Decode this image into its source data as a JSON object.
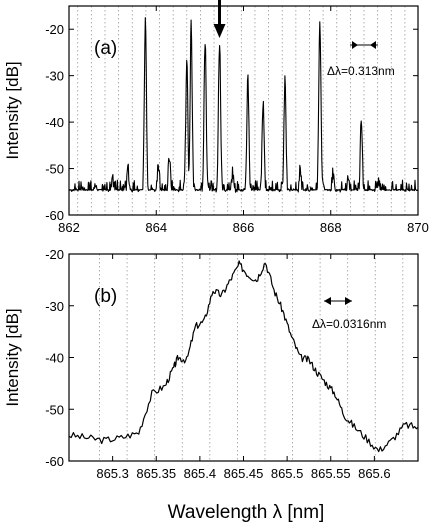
{
  "chart_data": [
    {
      "type": "line",
      "panel_label": "(a)",
      "ylabel": "Intensity [dB]",
      "xlim": [
        862,
        870
      ],
      "ylim": [
        -60,
        -15
      ],
      "xticks": [
        862,
        864,
        866,
        868,
        870
      ],
      "yticks": [
        -20,
        -30,
        -40,
        -50,
        -60
      ],
      "grid": "vertical dotted",
      "annotation": "Δλ=0.313nm",
      "arrow_marker_x": 865.45,
      "noise_floor": -56,
      "peaks": [
        {
          "x": 862.62,
          "y": -53
        },
        {
          "x": 863.0,
          "y": -52
        },
        {
          "x": 863.35,
          "y": -50
        },
        {
          "x": 863.75,
          "y": -18
        },
        {
          "x": 864.05,
          "y": -49
        },
        {
          "x": 864.3,
          "y": -47
        },
        {
          "x": 864.7,
          "y": -27
        },
        {
          "x": 864.8,
          "y": -19
        },
        {
          "x": 865.12,
          "y": -22
        },
        {
          "x": 865.45,
          "y": -22
        },
        {
          "x": 865.75,
          "y": -51
        },
        {
          "x": 866.1,
          "y": -31
        },
        {
          "x": 866.45,
          "y": -36
        },
        {
          "x": 866.95,
          "y": -31
        },
        {
          "x": 867.3,
          "y": -50
        },
        {
          "x": 867.75,
          "y": -18
        },
        {
          "x": 868.05,
          "y": -51
        },
        {
          "x": 868.4,
          "y": -52
        },
        {
          "x": 868.7,
          "y": -39
        },
        {
          "x": 869.1,
          "y": -52
        }
      ]
    },
    {
      "type": "line",
      "panel_label": "(b)",
      "xlabel": "Wavelength  λ  [nm]",
      "ylabel": "Intensity [dB]",
      "xlim": [
        865.25,
        865.65
      ],
      "ylim": [
        -60,
        -20
      ],
      "xticks": [
        865.3,
        865.35,
        865.4,
        865.45,
        865.5,
        865.55,
        865.6
      ],
      "yticks": [
        -20,
        -30,
        -40,
        -50,
        -60
      ],
      "grid": "vertical dotted",
      "annotation": "Δλ=0.0316nm",
      "x": [
        865.25,
        865.27,
        865.29,
        865.31,
        865.33,
        865.345,
        865.36,
        865.37,
        865.375,
        865.385,
        865.395,
        865.405,
        865.415,
        865.425,
        865.435,
        865.445,
        865.455,
        865.465,
        865.475,
        865.485,
        865.495,
        865.505,
        865.515,
        865.525,
        865.535,
        865.545,
        865.555,
        865.565,
        865.575,
        865.59,
        865.605,
        865.62,
        865.635,
        865.65
      ],
      "y": [
        -55,
        -55.5,
        -56,
        -55.5,
        -54.5,
        -47,
        -45.5,
        -42,
        -40,
        -40.5,
        -34,
        -33,
        -27,
        -28,
        -25,
        -22,
        -24,
        -25,
        -21.5,
        -27,
        -31,
        -36,
        -40,
        -40.5,
        -43,
        -45,
        -47,
        -51,
        -53,
        -55.5,
        -58,
        -56,
        -53,
        -53.5
      ]
    }
  ]
}
